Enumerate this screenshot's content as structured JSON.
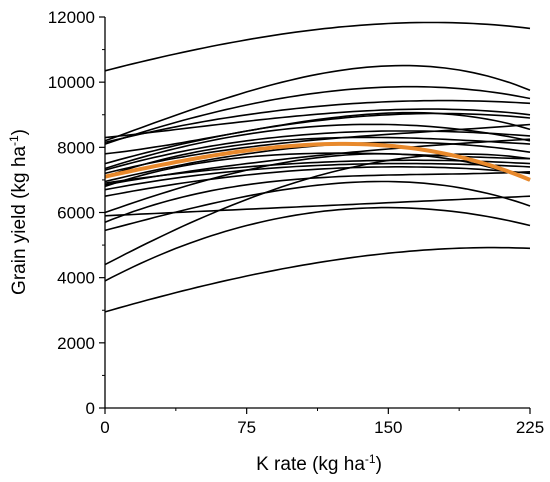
{
  "chart_data": {
    "type": "line",
    "xlabel": "K rate (kg ha",
    "xlabel_sup": "-1",
    "xlabel_end": ")",
    "ylabel": "Grain yield (kg ha",
    "ylabel_sup": "-1",
    "ylabel_end": ")",
    "xlim": [
      0,
      225
    ],
    "ylim": [
      0,
      12000
    ],
    "x_ticks": [
      0,
      75,
      150,
      225
    ],
    "y_ticks": [
      0,
      2000,
      4000,
      6000,
      8000,
      10000,
      12000
    ],
    "grid": false,
    "legend": "none",
    "x": [
      0,
      75,
      150,
      225
    ],
    "colors": {
      "curves": "#000000",
      "mean": "#e8892c"
    },
    "series": [
      {
        "values": [
          10350,
          11300,
          11800,
          11650
        ]
      },
      {
        "values": [
          8200,
          9700,
          10500,
          9750
        ]
      },
      {
        "values": [
          8100,
          9300,
          9850,
          9500
        ]
      },
      {
        "values": [
          8150,
          9000,
          9400,
          9350
        ]
      },
      {
        "values": [
          8300,
          8800,
          9150,
          9000
        ]
      },
      {
        "values": [
          7800,
          8500,
          9050,
          8550
        ]
      },
      {
        "values": [
          7500,
          8500,
          9000,
          8900
        ]
      },
      {
        "values": [
          7350,
          8400,
          8700,
          8200
        ]
      },
      {
        "values": [
          7300,
          8200,
          8500,
          8350
        ]
      },
      {
        "values": [
          7200,
          8000,
          8400,
          8700
        ]
      },
      {
        "values": [
          7100,
          8100,
          8300,
          8100
        ]
      },
      {
        "values": [
          6950,
          7800,
          8150,
          7850
        ]
      },
      {
        "values": [
          6850,
          7500,
          7950,
          8250
        ]
      },
      {
        "values": [
          6800,
          7700,
          7800,
          7650
        ]
      },
      {
        "values": [
          6900,
          7400,
          7600,
          7500
        ]
      },
      {
        "values": [
          6700,
          7300,
          7500,
          7400
        ]
      },
      {
        "values": [
          6500,
          7150,
          7400,
          7200
        ]
      },
      {
        "values": [
          6000,
          7300,
          7800,
          7000
        ]
      },
      {
        "values": [
          5700,
          6850,
          7150,
          7250
        ]
      },
      {
        "values": [
          5900,
          6100,
          6300,
          6500
        ]
      },
      {
        "values": [
          5450,
          6500,
          6950,
          6200
        ]
      },
      {
        "values": [
          4400,
          6400,
          7600,
          7650
        ]
      },
      {
        "values": [
          3900,
          5600,
          6150,
          5600
        ]
      },
      {
        "values": [
          2950,
          4050,
          4750,
          4900
        ]
      },
      {
        "values": [
          7100,
          7900,
          8050,
          7000
        ],
        "highlight": true
      }
    ]
  }
}
